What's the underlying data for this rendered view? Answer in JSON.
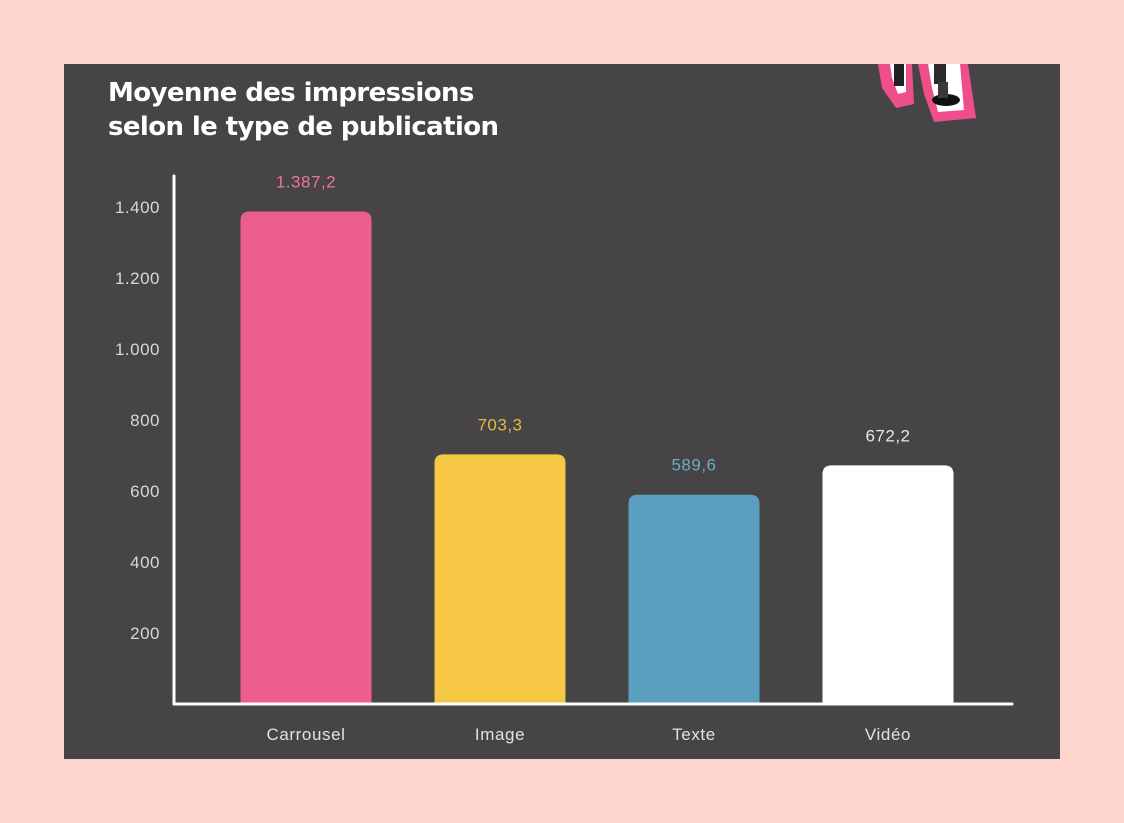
{
  "colors": {
    "page_background": "#fdd5cd",
    "panel_background": "#464444",
    "axis": "#ffffff",
    "accent_pink": "#ee5d8f"
  },
  "decoration": {
    "icon": "sticker-legs-illustration-icon"
  },
  "chart_data": {
    "type": "bar",
    "title_lines": [
      "Moyenne des impressions",
      "selon le type de publication"
    ],
    "xlabel": "",
    "ylabel": "",
    "categories": [
      "Carrousel",
      "Image",
      "Texte",
      "Vidéo"
    ],
    "values": [
      1387.2,
      703.3,
      589.6,
      672.2
    ],
    "value_labels": [
      "1.387,2",
      "703,3",
      "589,6",
      "672,2"
    ],
    "bar_colors": [
      "#ee5d8f",
      "#f7c845",
      "#5a9fc0",
      "#ffffff"
    ],
    "value_label_colors": [
      "#e7789d",
      "#e6b843",
      "#6ea9c9",
      "#e8e8e8"
    ],
    "y_ticks": [
      200,
      400,
      600,
      800,
      1000,
      1200,
      1400
    ],
    "y_tick_labels": [
      "200",
      "400",
      "600",
      "800",
      "1.000",
      "1.200",
      "1.400"
    ],
    "ylim": [
      0,
      1480
    ],
    "grid": false,
    "legend": "none"
  }
}
